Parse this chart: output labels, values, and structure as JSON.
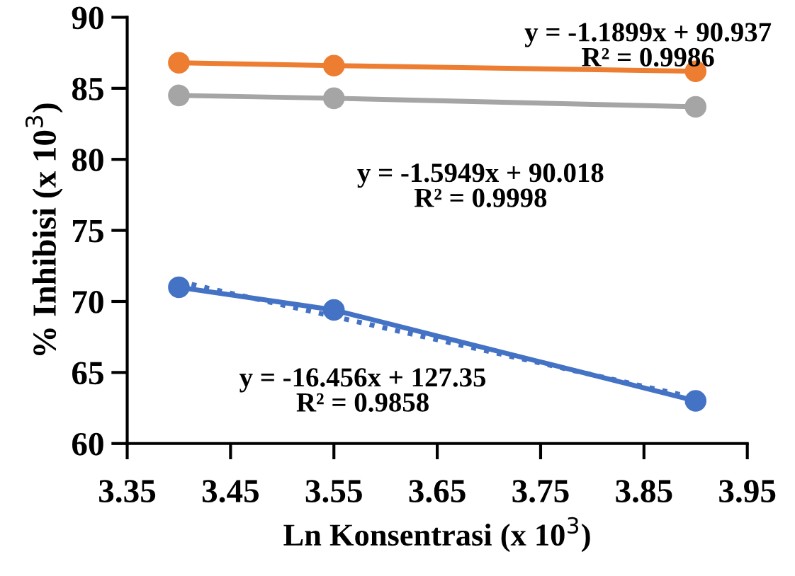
{
  "chart_data": {
    "type": "line",
    "xlabel": "Ln Konsentrasi (x 10$^{3}$)",
    "ylabel": "% Inhibisi (x 10$^{3}$)",
    "x": [
      3.4,
      3.55,
      3.9
    ],
    "series": [
      {
        "color": "#ed7d31",
        "values": [
          86.8,
          86.6,
          86.2
        ],
        "marker": "circle",
        "line_style": "solid"
      },
      {
        "color": "#a5a5a5",
        "values": [
          84.5,
          84.3,
          83.7
        ],
        "marker": "circle",
        "line_style": "solid"
      },
      {
        "color": "#4472c4",
        "values": [
          71.0,
          69.4,
          63.0
        ],
        "marker": "circle",
        "line_style": "solid"
      },
      {
        "color": "#4472c4",
        "x": [
          3.4,
          3.9
        ],
        "values": [
          71.4,
          63.2
        ],
        "marker": "none",
        "line_style": "dotted"
      }
    ],
    "annotations": [
      "y = -1.1899x + 90.937\nR² = 0.9986",
      "y = -1.5949x + 90.018\nR² = 0.9998",
      "y = -16.456x + 127.35\nR² = 0.9858"
    ],
    "xlim": [
      3.35,
      3.95
    ],
    "xticks": [
      3.35,
      3.45,
      3.55,
      3.65,
      3.75,
      3.85,
      3.95
    ],
    "ylim": [
      60,
      90
    ],
    "yticks": [
      60,
      65,
      70,
      75,
      80,
      85,
      90
    ],
    "grid": false,
    "legend": false
  }
}
